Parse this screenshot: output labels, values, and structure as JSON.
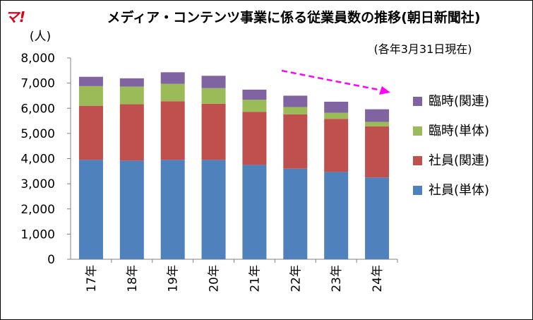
{
  "logo": "マ!",
  "chart_data": {
    "type": "bar",
    "stacked": true,
    "title": "メディア・コンテンツ事業に係る従業員数の推移(朝日新聞社)",
    "subtitle": "(各年3月31日現在)",
    "ylabel": "(人)",
    "xlabel": "",
    "ylim": [
      0,
      8000
    ],
    "yticks": [
      0,
      1000,
      2000,
      3000,
      4000,
      5000,
      6000,
      7000,
      8000
    ],
    "ytick_labels": [
      "0",
      "1,000",
      "2,000",
      "3,000",
      "4,000",
      "5,000",
      "6,000",
      "7,000",
      "8,000"
    ],
    "categories": [
      "17年",
      "18年",
      "19年",
      "20年",
      "21年",
      "22年",
      "23年",
      "24年"
    ],
    "grid": false,
    "legend_position": "right",
    "series": [
      {
        "name": "社員(単体)",
        "color": "#4f81bd",
        "values": [
          3950,
          3920,
          3950,
          3950,
          3750,
          3600,
          3470,
          3250
        ]
      },
      {
        "name": "社員(関連)",
        "color": "#c0504d",
        "values": [
          2150,
          2240,
          2330,
          2230,
          2110,
          2160,
          2110,
          2030
        ]
      },
      {
        "name": "臨時(単体)",
        "color": "#9bbb59",
        "values": [
          780,
          700,
          690,
          620,
          480,
          290,
          240,
          180
        ]
      },
      {
        "name": "臨時(関連)",
        "color": "#8064a2",
        "values": [
          370,
          330,
          460,
          490,
          400,
          450,
          440,
          500
        ]
      }
    ],
    "annotations": [
      {
        "type": "trend-arrow",
        "color": "#ff00ff",
        "style": "dashed"
      }
    ]
  }
}
